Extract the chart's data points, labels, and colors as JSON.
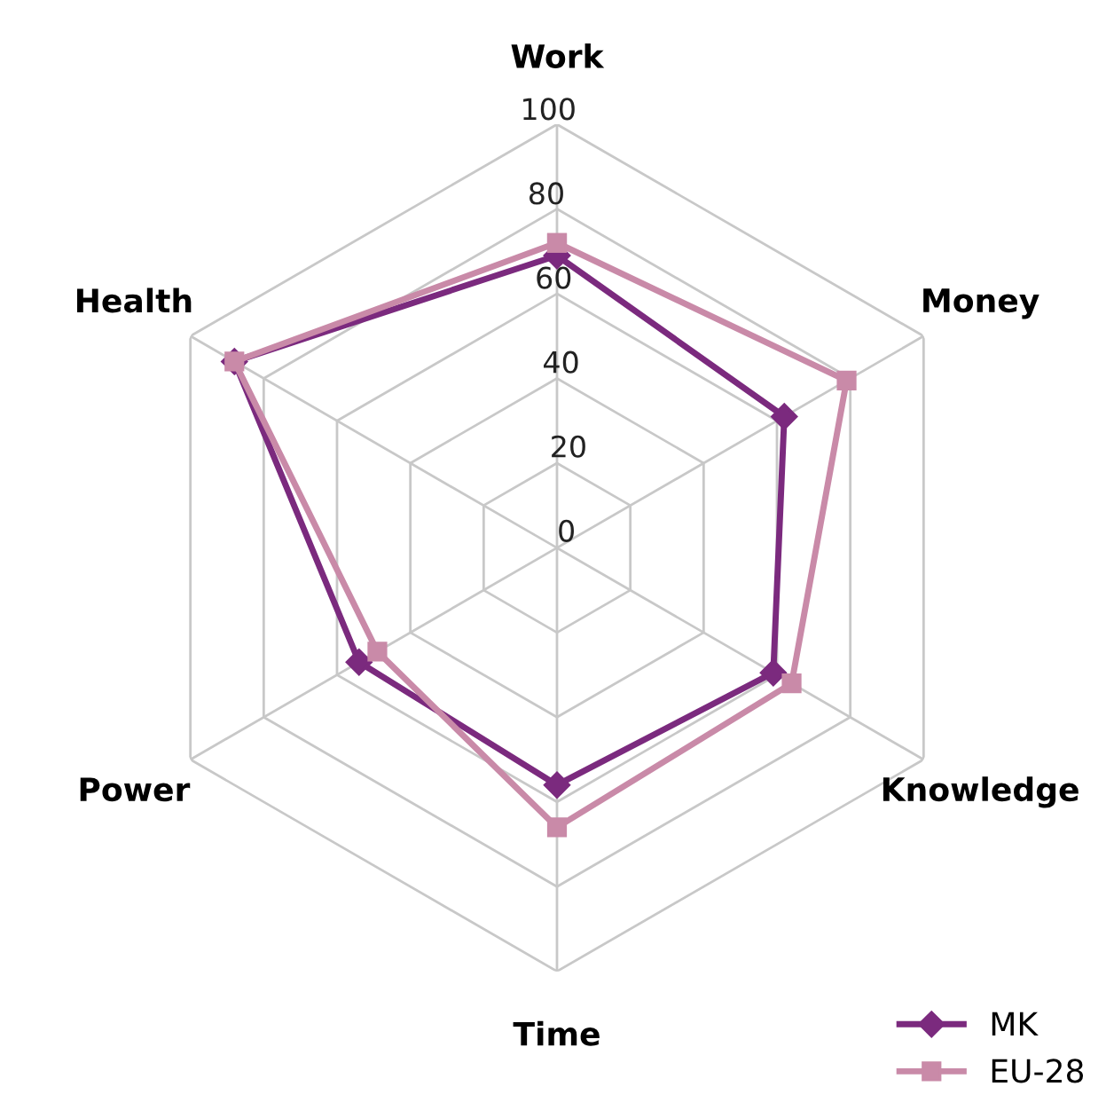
{
  "chart_data": {
    "type": "radar",
    "categories": [
      "Work",
      "Money",
      "Knowledge",
      "Time",
      "Power",
      "Health"
    ],
    "series": [
      {
        "name": "MK",
        "color": "#7b2a7e",
        "marker": "diamond",
        "values": [
          69,
          62,
          59,
          56,
          54,
          88
        ]
      },
      {
        "name": "EU-28",
        "color": "#c98aa8",
        "marker": "square",
        "values": [
          72,
          79,
          64,
          66,
          49,
          88
        ]
      }
    ],
    "ylim": [
      0,
      100
    ],
    "yticks": [
      0,
      20,
      40,
      60,
      80,
      100
    ],
    "grid": true,
    "legend": "bottom right"
  }
}
